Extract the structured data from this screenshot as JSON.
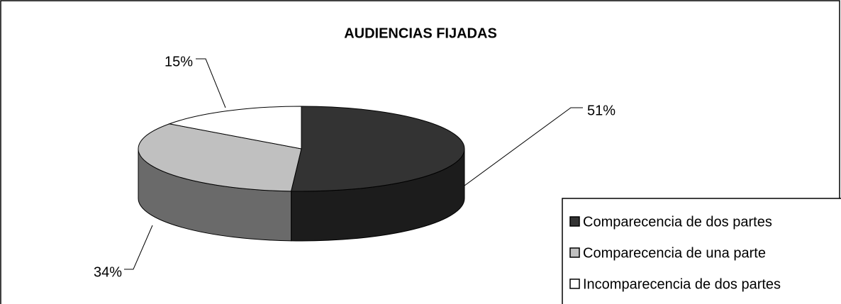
{
  "chart_data": {
    "type": "pie",
    "title": "AUDIENCIAS FIJADAS",
    "categories": [
      "Comparecencia de dos partes",
      "Comparecencia de una parte",
      "Incomparecencia de dos partes"
    ],
    "values": [
      51,
      34,
      15
    ],
    "value_labels": [
      "51%",
      "34%",
      "15%"
    ],
    "colors": [
      "#333333",
      "#c0c0c0",
      "#ffffff"
    ],
    "legend": "bottom-right"
  }
}
